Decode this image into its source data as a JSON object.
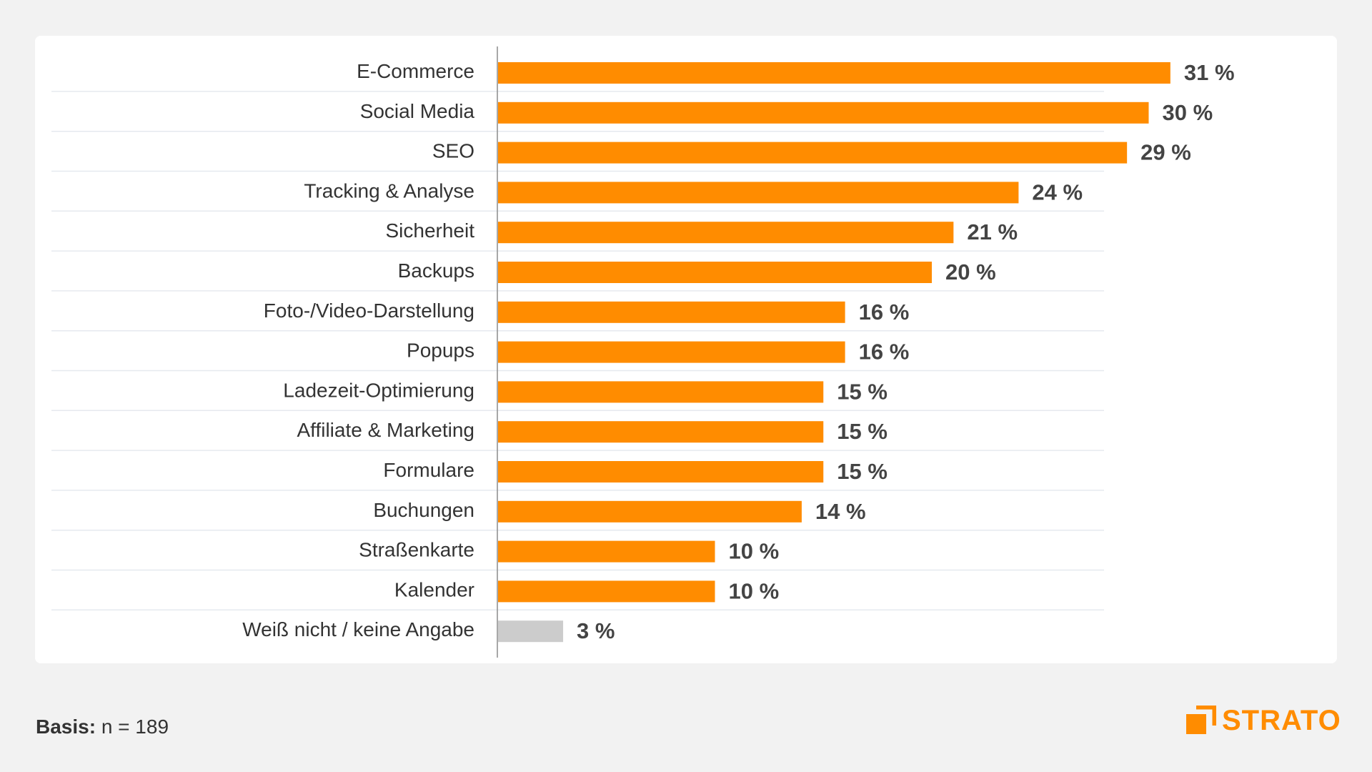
{
  "chart_data": {
    "type": "bar",
    "orientation": "horizontal",
    "categories": [
      "E-Commerce",
      "Social Media",
      "SEO",
      "Tracking & Analyse",
      "Sicherheit",
      "Backups",
      "Foto-/Video-Darstellung",
      "Popups",
      "Ladezeit-Optimierung",
      "Affiliate & Marketing",
      "Formulare",
      "Buchungen",
      "Straßenkarte",
      "Kalender",
      "Weiß nicht / keine Angabe"
    ],
    "values": [
      31,
      30,
      29,
      24,
      21,
      20,
      16,
      16,
      15,
      15,
      15,
      14,
      10,
      10,
      3
    ],
    "value_labels": [
      "31 %",
      "30 %",
      "29 %",
      "24 %",
      "21 %",
      "20 %",
      "16 %",
      "16 %",
      "15 %",
      "15 %",
      "15 %",
      "14 %",
      "10 %",
      "10 %",
      "3 %"
    ],
    "bar_colors": [
      "#ff8c00",
      "#ff8c00",
      "#ff8c00",
      "#ff8c00",
      "#ff8c00",
      "#ff8c00",
      "#ff8c00",
      "#ff8c00",
      "#ff8c00",
      "#ff8c00",
      "#ff8c00",
      "#ff8c00",
      "#ff8c00",
      "#ff8c00",
      "#cccccc"
    ],
    "title": "",
    "xlabel": "",
    "ylabel": "",
    "xlim": [
      0,
      31
    ],
    "grid": true,
    "legend": "none"
  },
  "footer": {
    "basis_label": "Basis:",
    "basis_value": "n = 189"
  },
  "logo": {
    "text": "STRATO",
    "color": "#ff8c00"
  }
}
